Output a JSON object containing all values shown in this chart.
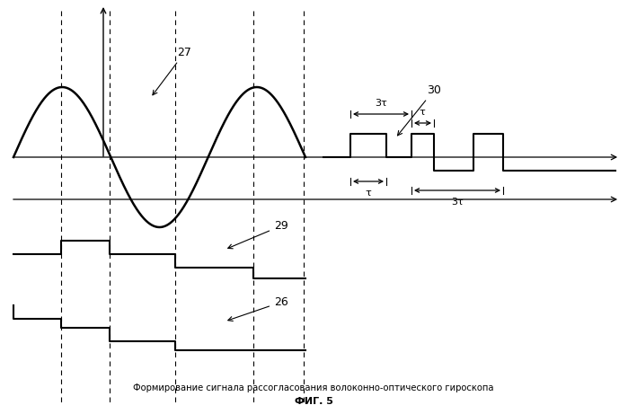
{
  "title_line1": "Формирование сигнала рассогласования волоконно-оптического гироскопа",
  "title_line2": "ФИГ. 5",
  "bg_color": "#ffffff",
  "fig_width": 6.99,
  "fig_height": 4.61,
  "dpi": 100,
  "label_27": "27",
  "label_30": "30",
  "label_29": "29",
  "label_26": "26"
}
